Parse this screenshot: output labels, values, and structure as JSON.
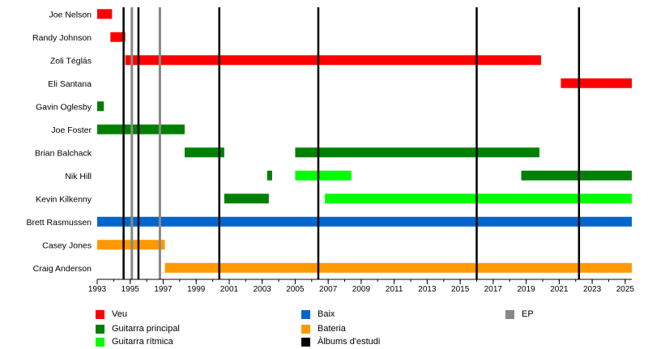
{
  "chart_data": {
    "type": "timeline",
    "title": "",
    "xlabel": "",
    "ylabel": "",
    "xlim": [
      1993.0,
      2025.4
    ],
    "x_ticks": [
      1993,
      1995,
      1997,
      1999,
      2001,
      2003,
      2005,
      2007,
      2009,
      2011,
      2013,
      2015,
      2017,
      2019,
      2021,
      2023,
      2025
    ],
    "grid": false,
    "legend_position": "bottom",
    "members": [
      "Joe Nelson",
      "Randy Johnson",
      "Zoli Téglás",
      "Eli Santana",
      "Gavin Oglesby",
      "Joe Foster",
      "Brian Balchack",
      "Nik Hill",
      "Kevin Kilkenny",
      "Brett Rasmussen",
      "Casey Jones",
      "Craig Anderson"
    ],
    "roles": {
      "vocals": {
        "label": "Veu",
        "color": "#ff0000"
      },
      "lead_guitar": {
        "label": "Guitarra principal",
        "color": "#008000"
      },
      "rhythm_guitar": {
        "label": "Guitarra rítmica",
        "color": "#00ff00"
      },
      "bass": {
        "label": "Baix",
        "color": "#0066cc"
      },
      "drums": {
        "label": "Bateria",
        "color": "#ff9900"
      },
      "studio_albums": {
        "label": "Àlbums d'estudi",
        "color": "#000000"
      },
      "ep": {
        "label": "EP",
        "color": "#888888"
      }
    },
    "bars": [
      {
        "member": "Joe Nelson",
        "role": "vocals",
        "start": 1993.0,
        "end": 1993.9
      },
      {
        "member": "Randy Johnson",
        "role": "vocals",
        "start": 1993.8,
        "end": 1994.7
      },
      {
        "member": "Zoli Téglás",
        "role": "vocals",
        "start": 1994.7,
        "end": 2019.9
      },
      {
        "member": "Eli Santana",
        "role": "vocals",
        "start": 2021.1,
        "end": 2025.4
      },
      {
        "member": "Gavin Oglesby",
        "role": "lead_guitar",
        "start": 1993.0,
        "end": 1993.4
      },
      {
        "member": "Joe Foster",
        "role": "lead_guitar",
        "start": 1993.0,
        "end": 1998.3
      },
      {
        "member": "Brian Balchack",
        "role": "lead_guitar",
        "start": 1998.3,
        "end": 2000.7
      },
      {
        "member": "Brian Balchack",
        "role": "lead_guitar",
        "start": 2005.0,
        "end": 2019.8
      },
      {
        "member": "Nik Hill",
        "role": "lead_guitar",
        "start": 2003.3,
        "end": 2003.6
      },
      {
        "member": "Nik Hill",
        "role": "rhythm_guitar",
        "start": 2005.0,
        "end": 2008.4
      },
      {
        "member": "Nik Hill",
        "role": "lead_guitar",
        "start": 2018.7,
        "end": 2025.4
      },
      {
        "member": "Kevin Kilkenny",
        "role": "lead_guitar",
        "start": 2000.7,
        "end": 2003.4
      },
      {
        "member": "Kevin Kilkenny",
        "role": "rhythm_guitar",
        "start": 2006.8,
        "end": 2025.4
      },
      {
        "member": "Brett Rasmussen",
        "role": "bass",
        "start": 1993.0,
        "end": 2025.4
      },
      {
        "member": "Casey Jones",
        "role": "drums",
        "start": 1993.0,
        "end": 1997.1
      },
      {
        "member": "Craig Anderson",
        "role": "drums",
        "start": 1997.1,
        "end": 2025.4
      }
    ],
    "event_lines": [
      {
        "role": "studio_albums",
        "x": 1994.6
      },
      {
        "role": "ep",
        "x": 1995.1
      },
      {
        "role": "studio_albums",
        "x": 1995.5
      },
      {
        "role": "ep",
        "x": 1996.8
      },
      {
        "role": "studio_albums",
        "x": 2000.4
      },
      {
        "role": "studio_albums",
        "x": 2006.4
      },
      {
        "role": "studio_albums",
        "x": 2016.0
      },
      {
        "role": "studio_albums",
        "x": 2022.2
      }
    ]
  },
  "legend": {
    "col1": [
      "vocals",
      "lead_guitar",
      "rhythm_guitar"
    ],
    "col2": [
      "bass",
      "drums",
      "studio_albums"
    ],
    "col3": [
      "ep"
    ]
  }
}
